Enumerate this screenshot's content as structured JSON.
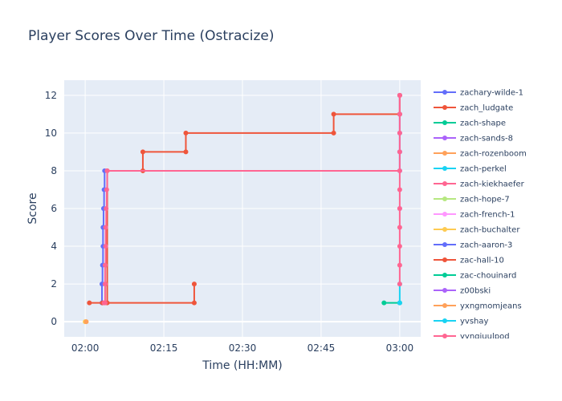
{
  "chart_data": {
    "type": "line",
    "line_shape": "step",
    "markers": true,
    "title": "Player Scores Over Time (Ostracize)",
    "xlabel": "Time (HH:MM)",
    "ylabel": "Score",
    "x_ticks": [
      "02:00",
      "02:15",
      "02:30",
      "02:45",
      "03:00"
    ],
    "y_ticks": [
      "0",
      "2",
      "4",
      "6",
      "8",
      "10",
      "12"
    ],
    "xlim": [
      "01:56",
      "03:04"
    ],
    "ylim": [
      -0.8,
      12.8
    ],
    "grid": true,
    "legend_position": "right",
    "plot_bg": "#e5ecf6",
    "series": [
      {
        "name": "zachary-wilde-1",
        "color": "#636efa",
        "points": [
          [
            "02:03.2",
            1
          ],
          [
            "02:03.2",
            2
          ],
          [
            "02:03.3",
            3
          ],
          [
            "02:03.4",
            4
          ],
          [
            "02:03.4",
            5
          ],
          [
            "02:03.5",
            6
          ],
          [
            "02:03.6",
            7
          ],
          [
            "02:03.7",
            8
          ],
          [
            "03:00",
            8
          ],
          [
            "03:00",
            9
          ],
          [
            "03:00",
            10
          ],
          [
            "03:00",
            11
          ],
          [
            "03:00",
            12
          ]
        ]
      },
      {
        "name": "zach_ludgate",
        "color": "#EF553B",
        "points": [
          [
            "02:00.8",
            1
          ],
          [
            "02:04.2",
            1
          ],
          [
            "02:04.2",
            8
          ],
          [
            "02:11",
            8
          ],
          [
            "02:11",
            9
          ],
          [
            "02:19.2",
            9
          ],
          [
            "02:19.2",
            10
          ],
          [
            "02:47.4",
            10
          ],
          [
            "02:47.4",
            11
          ],
          [
            "03:00",
            11
          ],
          [
            "03:00",
            12
          ]
        ]
      },
      {
        "name": "zach-shape",
        "color": "#00cc96",
        "points": []
      },
      {
        "name": "zach-sands-8",
        "color": "#ab63fa",
        "points": []
      },
      {
        "name": "zach-rozenboom",
        "color": "#FFA15A",
        "points": []
      },
      {
        "name": "zach-perkel",
        "color": "#19d3f3",
        "points": []
      },
      {
        "name": "zach-kiekhaefer",
        "color": "#FF6692",
        "points": []
      },
      {
        "name": "zach-hope-7",
        "color": "#B6E880",
        "points": []
      },
      {
        "name": "zach-french-1",
        "color": "#FF97FF",
        "points": []
      },
      {
        "name": "zach-buchalter",
        "color": "#FECB52",
        "points": [
          [
            "02:00",
            0
          ]
        ]
      },
      {
        "name": "zach-aaron-3",
        "color": "#636efa",
        "points": []
      },
      {
        "name": "zac-hall-10",
        "color": "#EF553B",
        "points": [
          [
            "02:03.3",
            1
          ],
          [
            "02:20.8",
            1
          ],
          [
            "02:20.8",
            2
          ]
        ]
      },
      {
        "name": "zac-chouinard",
        "color": "#00cc96",
        "points": [
          [
            "02:57",
            1
          ],
          [
            "03:00",
            1
          ]
        ]
      },
      {
        "name": "z00bski",
        "color": "#ab63fa",
        "points": [
          [
            "03:00",
            6
          ]
        ]
      },
      {
        "name": "yxngmomjeans",
        "color": "#FFA15A",
        "points": [
          [
            "02:00.2",
            0
          ]
        ]
      },
      {
        "name": "yvshay",
        "color": "#19d3f3",
        "points": [
          [
            "03:00",
            1
          ],
          [
            "03:00",
            2
          ]
        ]
      },
      {
        "name": "yyngiuulpod",
        "color": "#FF6692",
        "points": [
          [
            "02:03.6",
            1
          ],
          [
            "02:03.8",
            1
          ],
          [
            "02:03.8",
            2
          ],
          [
            "02:03.8",
            3
          ],
          [
            "02:03.9",
            4
          ],
          [
            "02:03.9",
            5
          ],
          [
            "02:04",
            6
          ],
          [
            "02:04.1",
            7
          ],
          [
            "02:04.2",
            8
          ],
          [
            "03:00",
            8
          ],
          [
            "03:00",
            2
          ],
          [
            "03:00",
            3
          ],
          [
            "03:00",
            4
          ],
          [
            "03:00",
            5
          ],
          [
            "03:00",
            6
          ],
          [
            "03:00",
            7
          ],
          [
            "03:00",
            9
          ],
          [
            "03:00",
            10
          ],
          [
            "03:00",
            11
          ],
          [
            "03:00",
            12
          ]
        ]
      }
    ]
  }
}
